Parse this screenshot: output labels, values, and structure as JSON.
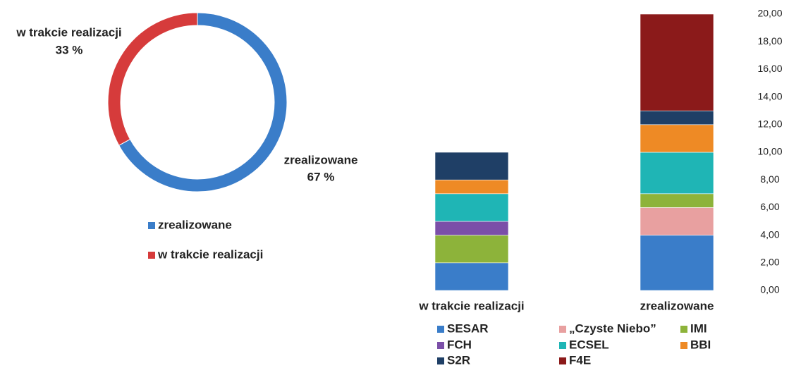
{
  "chart_data": [
    {
      "type": "pie",
      "categories": [
        "zrealizowane",
        "w trakcie realizacji"
      ],
      "values": [
        67,
        33
      ],
      "value_labels": [
        "67 %",
        "33 %"
      ],
      "colors": [
        "#3a7dc9",
        "#d63b3b"
      ]
    },
    {
      "type": "bar",
      "stacked": true,
      "categories": [
        "w trakcie realizacji",
        "zrealizowane"
      ],
      "series": [
        {
          "name": "SESAR",
          "color": "#3a7dc9",
          "values": [
            2,
            4
          ]
        },
        {
          "name": "„Czyste Niebo”",
          "color": "#e8a0a0",
          "values": [
            0,
            2
          ]
        },
        {
          "name": "IMI",
          "color": "#8db33a",
          "values": [
            2,
            1
          ]
        },
        {
          "name": "FCH",
          "color": "#7b4fa8",
          "values": [
            1,
            0
          ]
        },
        {
          "name": "ECSEL",
          "color": "#1fb5b5",
          "values": [
            2,
            3
          ]
        },
        {
          "name": "BBI",
          "color": "#ee8a25",
          "values": [
            1,
            2
          ]
        },
        {
          "name": "S2R",
          "color": "#1f3f66",
          "values": [
            2,
            1
          ]
        },
        {
          "name": "F4E",
          "color": "#8b1a1a",
          "values": [
            0,
            7
          ]
        }
      ],
      "ylim": [
        0,
        20
      ],
      "yticks": [
        {
          "value": 0,
          "label": "0,00"
        },
        {
          "value": 2,
          "label": "2,00"
        },
        {
          "value": 4,
          "label": "4,00"
        },
        {
          "value": 6,
          "label": "6,00"
        },
        {
          "value": 8,
          "label": "8,00"
        },
        {
          "value": 10,
          "label": "10,00"
        },
        {
          "value": 12,
          "label": "12,00"
        },
        {
          "value": 14,
          "label": "14,00"
        },
        {
          "value": 16,
          "label": "16,00"
        },
        {
          "value": 18,
          "label": "18,00"
        },
        {
          "value": 20,
          "label": "20,00"
        }
      ]
    }
  ]
}
